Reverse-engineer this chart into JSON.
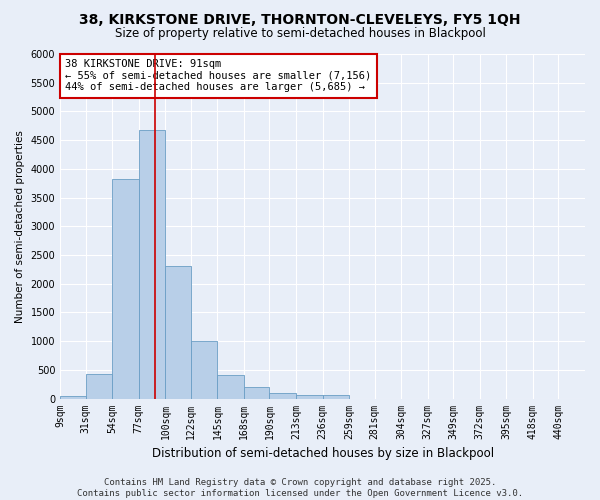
{
  "title": "38, KIRKSTONE DRIVE, THORNTON-CLEVELEYS, FY5 1QH",
  "subtitle": "Size of property relative to semi-detached houses in Blackpool",
  "xlabel": "Distribution of semi-detached houses by size in Blackpool",
  "ylabel": "Number of semi-detached properties",
  "footer_line1": "Contains HM Land Registry data © Crown copyright and database right 2025.",
  "footer_line2": "Contains public sector information licensed under the Open Government Licence v3.0.",
  "annotation_title": "38 KIRKSTONE DRIVE: 91sqm",
  "annotation_line2": "← 55% of semi-detached houses are smaller (7,156)",
  "annotation_line3": "44% of semi-detached houses are larger (5,685) →",
  "bar_edges": [
    9,
    31,
    54,
    77,
    100,
    122,
    145,
    168,
    190,
    213,
    236,
    259,
    281,
    304,
    327,
    349,
    372,
    395,
    418,
    440,
    463
  ],
  "bar_heights": [
    50,
    430,
    3820,
    4680,
    2300,
    1000,
    410,
    200,
    100,
    70,
    70,
    0,
    0,
    0,
    0,
    0,
    0,
    0,
    0,
    0
  ],
  "bar_color": "#b8cfe8",
  "bar_edge_color": "#6a9ec5",
  "property_line_x": 91,
  "ylim": [
    0,
    6000
  ],
  "yticks": [
    0,
    500,
    1000,
    1500,
    2000,
    2500,
    3000,
    3500,
    4000,
    4500,
    5000,
    5500,
    6000
  ],
  "bg_color": "#e8eef8",
  "grid_color": "#ffffff",
  "annotation_box_color": "#ffffff",
  "annotation_box_edge_color": "#cc0000",
  "property_line_color": "#cc0000",
  "title_fontsize": 10,
  "subtitle_fontsize": 8.5,
  "xlabel_fontsize": 8.5,
  "ylabel_fontsize": 7.5,
  "tick_fontsize": 7,
  "annotation_fontsize": 7.5,
  "footer_fontsize": 6.5
}
